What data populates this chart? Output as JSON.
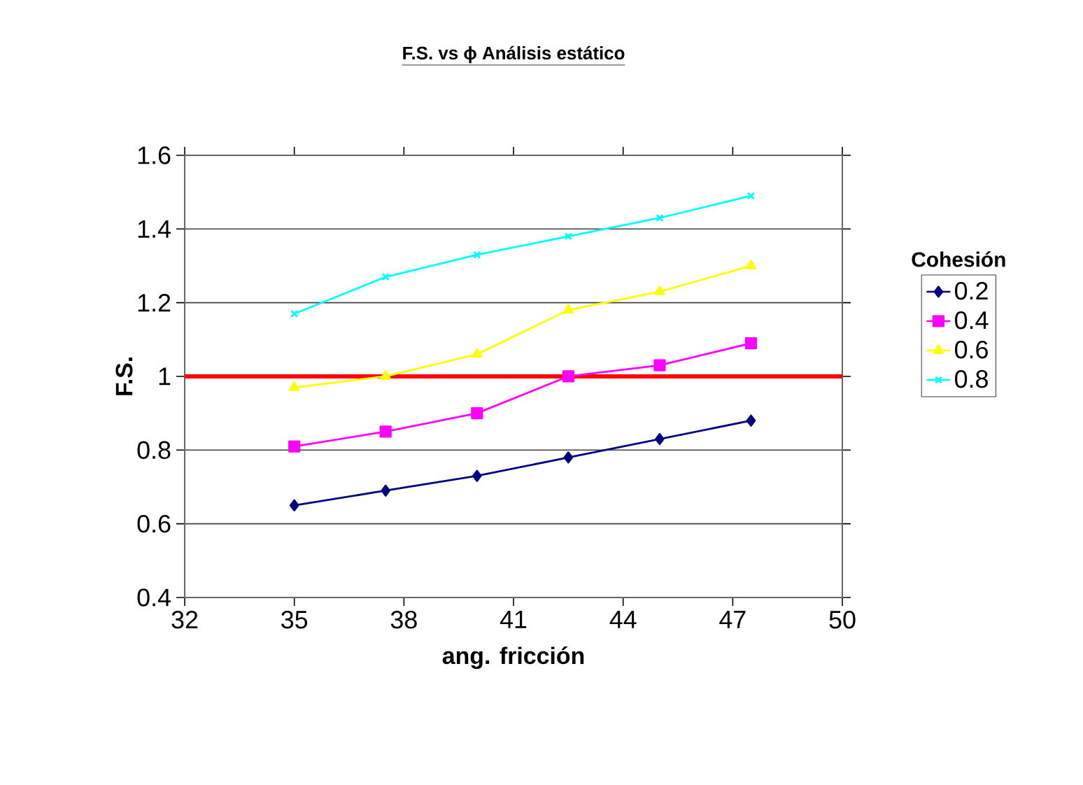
{
  "chart_data": {
    "type": "line",
    "title": "F.S. vs ϕ Análisis estático",
    "xlabel": "ang. fricción",
    "ylabel": "F.S.",
    "legend_title": "Cohesión",
    "x": [
      35,
      37.5,
      40,
      42.5,
      45,
      47.5
    ],
    "series": [
      {
        "name": "0.2",
        "color": "#000080",
        "marker": "diamond",
        "values": [
          0.65,
          0.69,
          0.73,
          0.78,
          0.83,
          0.88
        ]
      },
      {
        "name": "0.4",
        "color": "#ff00ff",
        "marker": "square",
        "values": [
          0.81,
          0.85,
          0.9,
          1.0,
          1.03,
          1.09
        ]
      },
      {
        "name": "0.6",
        "color": "#ffff00",
        "marker": "triangle",
        "values": [
          0.97,
          1.0,
          1.06,
          1.18,
          1.23,
          1.3
        ]
      },
      {
        "name": "0.8",
        "color": "#00ffff",
        "marker": "cross",
        "values": [
          1.17,
          1.27,
          1.33,
          1.38,
          1.43,
          1.49
        ]
      }
    ],
    "xlim": [
      32,
      50
    ],
    "xticks": [
      32,
      35,
      38,
      41,
      44,
      47,
      50
    ],
    "ylim": [
      0.4,
      1.6
    ],
    "yticks": [
      0.4,
      0.6,
      0.8,
      1,
      1.2,
      1.4,
      1.6
    ],
    "ref_lines": [
      {
        "axis": "y",
        "value": 1,
        "color": "#ff0000"
      }
    ],
    "grid": "y",
    "legend": "right"
  }
}
